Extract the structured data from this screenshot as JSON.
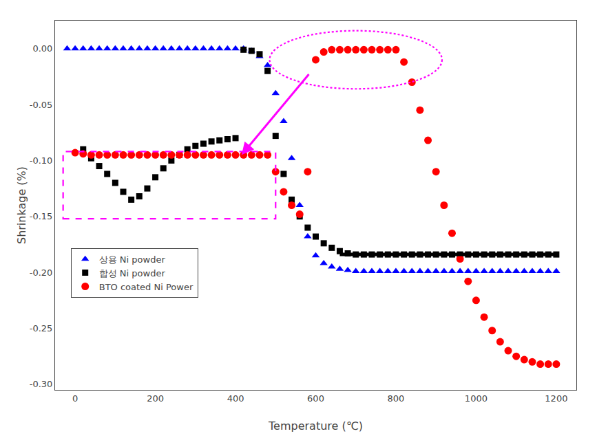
{
  "chart_data": {
    "type": "scatter",
    "title": "",
    "xlabel": "Temperature (℃)",
    "ylabel": "Shrinkage (%)",
    "xlim": [
      -50,
      1250
    ],
    "ylim": [
      -0.305,
      0.025
    ],
    "xticks": [
      0,
      200,
      400,
      600,
      800,
      1000,
      1200
    ],
    "yticks": [
      {
        "value": 0,
        "label": "0.00"
      },
      -0.05,
      {
        "value": -0.1,
        "label": "-0.10"
      },
      -0.15,
      {
        "value": -0.2,
        "label": "-0.20"
      },
      -0.25,
      {
        "value": -0.3,
        "label": "-0.30"
      }
    ],
    "grid": false,
    "legend": "lower left",
    "series": [
      {
        "name": "상용 Ni powder",
        "color": "blue",
        "marker": "triangle",
        "type": "scatter",
        "x": [
          -20,
          0,
          20,
          40,
          60,
          80,
          100,
          120,
          140,
          160,
          180,
          200,
          220,
          240,
          260,
          280,
          300,
          320,
          340,
          360,
          380,
          400,
          420,
          440,
          460,
          480,
          500,
          520,
          540,
          560,
          580,
          600,
          620,
          640,
          660,
          680,
          700,
          720,
          740,
          760,
          780,
          800,
          820,
          840,
          860,
          880,
          900,
          920,
          940,
          960,
          980,
          1000,
          1020,
          1040,
          1060,
          1080,
          1100,
          1120,
          1140,
          1160,
          1180,
          1200
        ],
        "values": [
          0.0,
          0.0,
          0.0,
          0.0,
          0.0,
          0.0,
          0.0,
          0.0,
          0.0,
          0.0,
          0.0,
          0.0,
          0.0,
          0.0,
          0.0,
          0.0,
          0.0,
          0.0,
          0.0,
          0.0,
          0.0,
          0.0,
          0.0,
          -0.002,
          -0.007,
          -0.015,
          -0.04,
          -0.065,
          -0.098,
          -0.14,
          -0.168,
          -0.185,
          -0.192,
          -0.195,
          -0.197,
          -0.198,
          -0.199,
          -0.199,
          -0.199,
          -0.199,
          -0.199,
          -0.199,
          -0.199,
          -0.199,
          -0.199,
          -0.199,
          -0.199,
          -0.199,
          -0.199,
          -0.199,
          -0.199,
          -0.199,
          -0.199,
          -0.199,
          -0.199,
          -0.199,
          -0.199,
          -0.199,
          -0.199,
          -0.199,
          -0.199,
          -0.199
        ]
      },
      {
        "name": "합성 Ni powder",
        "color": "black",
        "marker": "square",
        "type": "scatter",
        "x": [
          20,
          40,
          60,
          80,
          100,
          120,
          140,
          160,
          180,
          200,
          220,
          240,
          260,
          280,
          300,
          320,
          340,
          360,
          380,
          400,
          420,
          440,
          460,
          480,
          500,
          520,
          540,
          560,
          580,
          600,
          620,
          640,
          660,
          680,
          700,
          720,
          740,
          760,
          780,
          800,
          820,
          840,
          860,
          880,
          900,
          920,
          940,
          960,
          980,
          1000,
          1020,
          1040,
          1060,
          1080,
          1100,
          1120,
          1140,
          1160,
          1180,
          1200
        ],
        "values": [
          -0.09,
          -0.098,
          -0.105,
          -0.112,
          -0.12,
          -0.128,
          -0.135,
          -0.132,
          -0.125,
          -0.115,
          -0.107,
          -0.1,
          -0.095,
          -0.09,
          -0.087,
          -0.085,
          -0.083,
          -0.082,
          -0.081,
          -0.08,
          -0.001,
          -0.002,
          -0.005,
          -0.02,
          -0.078,
          -0.112,
          -0.135,
          -0.15,
          -0.16,
          -0.168,
          -0.174,
          -0.178,
          -0.181,
          -0.183,
          -0.184,
          -0.184,
          -0.184,
          -0.184,
          -0.184,
          -0.184,
          -0.184,
          -0.184,
          -0.184,
          -0.184,
          -0.184,
          -0.184,
          -0.184,
          -0.184,
          -0.184,
          -0.184,
          -0.184,
          -0.184,
          -0.184,
          -0.184,
          -0.184,
          -0.184,
          -0.184,
          -0.184,
          -0.184,
          -0.184
        ]
      },
      {
        "name": "BTO coated Ni Power",
        "color": "red",
        "marker": "circle",
        "type": "scatter",
        "x": [
          0,
          20,
          40,
          60,
          80,
          100,
          120,
          140,
          160,
          180,
          200,
          220,
          240,
          260,
          280,
          300,
          320,
          340,
          360,
          380,
          400,
          420,
          440,
          460,
          480,
          500,
          520,
          540,
          560,
          580,
          600,
          620,
          640,
          660,
          680,
          700,
          720,
          740,
          760,
          780,
          800,
          820,
          840,
          860,
          880,
          900,
          920,
          940,
          960,
          980,
          1000,
          1020,
          1040,
          1060,
          1080,
          1100,
          1120,
          1140,
          1160,
          1180,
          1200
        ],
        "values": [
          -0.093,
          -0.094,
          -0.095,
          -0.095,
          -0.095,
          -0.095,
          -0.095,
          -0.095,
          -0.095,
          -0.095,
          -0.095,
          -0.095,
          -0.095,
          -0.095,
          -0.095,
          -0.095,
          -0.095,
          -0.095,
          -0.095,
          -0.095,
          -0.095,
          -0.095,
          -0.095,
          -0.095,
          -0.095,
          -0.11,
          -0.128,
          -0.14,
          -0.148,
          -0.11,
          -0.01,
          -0.003,
          -0.001,
          -0.001,
          -0.001,
          -0.001,
          -0.001,
          -0.001,
          -0.001,
          -0.001,
          -0.001,
          -0.012,
          -0.03,
          -0.055,
          -0.082,
          -0.11,
          -0.14,
          -0.165,
          -0.188,
          -0.208,
          -0.225,
          -0.24,
          -0.252,
          -0.262,
          -0.27,
          -0.275,
          -0.278,
          -0.28,
          -0.282,
          -0.282,
          -0.282
        ]
      },
      {
        "color": "black",
        "type": "line",
        "line_style": "solid",
        "x": [
          660,
          1200
        ],
        "values": [
          -0.184,
          -0.184
        ]
      }
    ],
    "shapes": [
      {
        "type": "rect",
        "color": "#FF00FF",
        "line_style": "dashed",
        "x0": -30,
        "x1": 500,
        "y0": -0.152,
        "y1": -0.092
      },
      {
        "type": "ellipse",
        "color": "#FF00FF",
        "line_style": "dotted",
        "x0": 485,
        "x1": 915,
        "y0": -0.036,
        "y1": 0.016
      },
      {
        "type": "arrow",
        "color": "#FF00FF",
        "x0": 585,
        "y0": -0.022,
        "x1": 415,
        "y1": -0.095
      }
    ]
  }
}
